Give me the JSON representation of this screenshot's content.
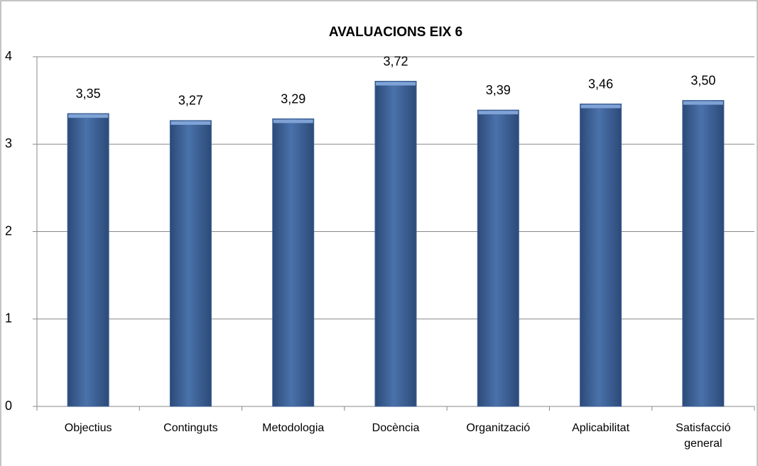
{
  "chart_data": {
    "type": "bar",
    "title": "AVALUACIONS EIX 6",
    "categories": [
      "Objectius",
      "Continguts",
      "Metodologia",
      "Docència",
      "Organització",
      "Aplicabilitat",
      "Satisfacció general"
    ],
    "values": [
      3.35,
      3.27,
      3.29,
      3.72,
      3.39,
      3.46,
      3.5
    ],
    "value_labels": [
      "3,35",
      "3,27",
      "3,29",
      "3,72",
      "3,39",
      "3,46",
      "3,50"
    ],
    "color": "#3d6096",
    "ylim": [
      0,
      4
    ],
    "yticks": [
      0,
      1,
      2,
      3,
      4
    ],
    "grid": true
  }
}
